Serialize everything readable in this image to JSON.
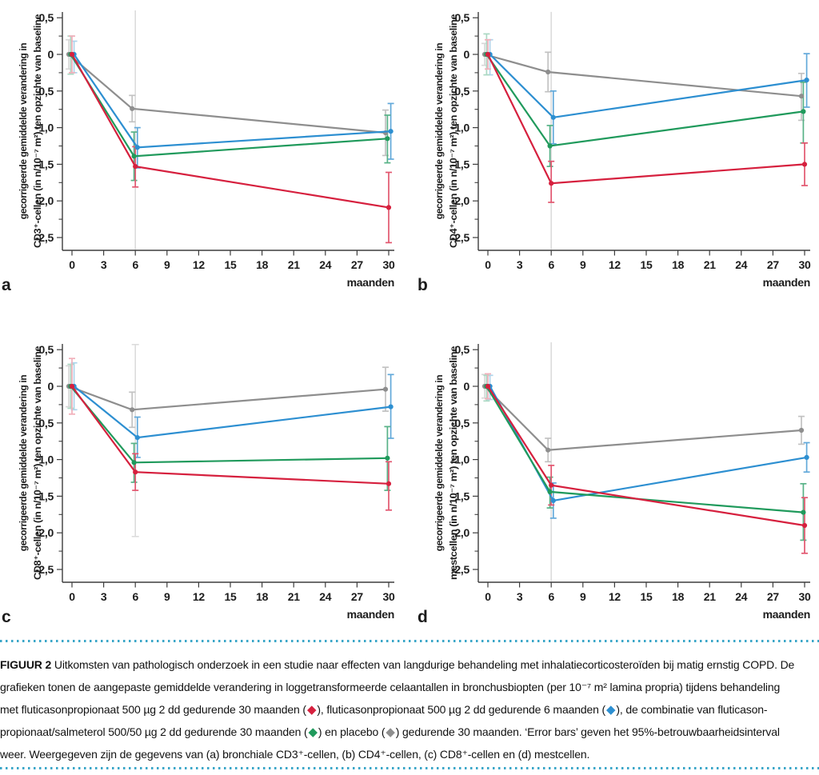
{
  "figure": {
    "caption_label": "FIGUUR 2",
    "caption_lines": [
      {
        "segments": [
          {
            "b": "FIGUUR 2"
          },
          {
            "t": "  Uitkomsten van pathologisch onderzoek in een studie naar effecten van langdurige behandeling met inhalatiecorticosteroïden bij matig ernstig COPD. De"
          }
        ]
      },
      {
        "segments": [
          {
            "t": "grafieken tonen de aangepaste gemiddelde verandering in loggetransformeerde celaantallen in bronchusbiopten (per 10⁻⁷ m² lamina propria) tijdens behandeling"
          }
        ]
      },
      {
        "segments": [
          {
            "t": "met fluticasonpropionaat 500 µg 2 dd gedurende 30 maanden ("
          },
          {
            "d": "red"
          },
          {
            "t": "), fluticasonpropionaat 500 µg 2 dd gedurende 6 maanden ("
          },
          {
            "d": "blue"
          },
          {
            "t": "), de combinatie van fluticason-"
          }
        ]
      },
      {
        "segments": [
          {
            "t": "propionaat/salmeterol 500/50 µg 2 dd gedurende 30 maanden ("
          },
          {
            "d": "green"
          },
          {
            "t": ") en placebo ("
          },
          {
            "d": "grey"
          },
          {
            "t": ") gedurende 30 maanden. ‘Error bars’ geven het 95%-betrouwbaarheidsinterval"
          }
        ]
      },
      {
        "segments": [
          {
            "t": "weer. Weergegeven zijn de gegevens van (a) bronchiale CD3⁺-cellen, (b) CD4⁺-cellen, (c) CD8⁺-cellen en (d) mestcellen."
          }
        ]
      }
    ],
    "separator_color": "#3aa6c8"
  },
  "legend": {
    "red": {
      "name": "fluticasonpropionaat 500 µg 2 dd gedurende 30 maanden",
      "line": "#d6203e",
      "ci": "#e2566f",
      "ci_light": "#f1afba"
    },
    "blue": {
      "name": "fluticasonpropionaat 500 µg 2 dd gedurende 6 maanden",
      "line": "#2d8fd1",
      "ci": "#62a9da",
      "ci_light": "#aed4ec"
    },
    "green": {
      "name": "fluticasonpropionaat/salmeterol 500/50 µg 2 dd gedurende 30 maanden",
      "line": "#209a5c",
      "ci": "#57b287",
      "ci_light": "#abd8c3"
    },
    "grey": {
      "name": "placebo gedurende 30 maanden",
      "line": "#8e8e8e",
      "ci": "#c2c2c2",
      "ci_light": "#d8d8d8"
    }
  },
  "chart_data": [
    {
      "type": "line",
      "panel_label": "a",
      "xlabel": "maanden",
      "ylabel_lines": [
        "gecorrigeerde gemiddelde verandering in",
        "CD3⁺-cellen (in n/10⁻⁷ m²) ten opzichte van baseline"
      ],
      "x_ticks": [
        0,
        3,
        6,
        9,
        12,
        15,
        18,
        21,
        24,
        27,
        30
      ],
      "y_ticks": [
        {
          "v": 0.5,
          "label": "0,5"
        },
        {
          "v": 0,
          "label": "0"
        },
        {
          "v": -0.5,
          "label": "-0,5"
        },
        {
          "v": -1,
          "label": "-1,0"
        },
        {
          "v": -1.5,
          "label": "-1,5"
        },
        {
          "v": -2,
          "label": "-2,0"
        },
        {
          "v": -2.5,
          "label": "-2,5"
        }
      ],
      "ylim": [
        -2.7,
        0.6
      ],
      "xlim": [
        0,
        30
      ],
      "guide": {
        "x": 6,
        "hi": 0.6,
        "lo": -2.66,
        "caps": false
      },
      "series": [
        {
          "key": "grey",
          "points": [
            {
              "x": 0,
              "y": 0,
              "hi": 0.2,
              "lo": -0.2
            },
            {
              "x": 6,
              "y": -0.74,
              "hi": -0.56,
              "lo": -0.92
            },
            {
              "x": 30,
              "y": -1.07,
              "hi": -0.76,
              "lo": -1.38
            }
          ]
        },
        {
          "key": "blue",
          "points": [
            {
              "x": 0,
              "y": 0,
              "hi": 0.18,
              "lo": -0.25
            },
            {
              "x": 6,
              "y": -1.27,
              "hi": -1.0,
              "lo": -1.55
            },
            {
              "x": 30,
              "y": -1.05,
              "hi": -0.67,
              "lo": -1.43
            }
          ]
        },
        {
          "key": "green",
          "points": [
            {
              "x": 0,
              "y": 0,
              "hi": 0.25,
              "lo": -0.27
            },
            {
              "x": 6,
              "y": -1.39,
              "hi": -1.06,
              "lo": -1.72
            },
            {
              "x": 30,
              "y": -1.15,
              "hi": -0.83,
              "lo": -1.48
            }
          ]
        },
        {
          "key": "red",
          "points": [
            {
              "x": 0,
              "y": 0,
              "hi": 0.25,
              "lo": -0.25
            },
            {
              "x": 6,
              "y": -1.53,
              "hi": -1.26,
              "lo": -1.81
            },
            {
              "x": 30,
              "y": -2.09,
              "hi": -1.61,
              "lo": -2.57
            }
          ]
        }
      ]
    },
    {
      "type": "line",
      "panel_label": "b",
      "xlabel": "maanden",
      "ylabel_lines": [
        "gecorrigeerde gemiddelde verandering in",
        "CD4⁺-cellen (in n/10⁻⁷ m²) ten opzichte van baseline"
      ],
      "x_ticks": [
        0,
        3,
        6,
        9,
        12,
        15,
        18,
        21,
        24,
        27,
        30
      ],
      "y_ticks": [
        {
          "v": 0.5,
          "label": "0,5"
        },
        {
          "v": 0,
          "label": "0"
        },
        {
          "v": -0.5,
          "label": "-0,5"
        },
        {
          "v": -1,
          "label": "-1,0"
        },
        {
          "v": -1.5,
          "label": "-1,5"
        },
        {
          "v": -2,
          "label": "-2,0"
        },
        {
          "v": -2.5,
          "label": "-2,5"
        }
      ],
      "ylim": [
        -2.7,
        0.6
      ],
      "xlim": [
        0,
        30
      ],
      "guide": {
        "x": 6,
        "hi": 0.58,
        "lo": -2.66,
        "caps": false
      },
      "series": [
        {
          "key": "grey",
          "points": [
            {
              "x": 0,
              "y": 0,
              "hi": 0.15,
              "lo": -0.15
            },
            {
              "x": 6,
              "y": -0.24,
              "hi": 0.03,
              "lo": -0.51
            },
            {
              "x": 30,
              "y": -0.57,
              "hi": -0.26,
              "lo": -0.9
            }
          ]
        },
        {
          "key": "blue",
          "points": [
            {
              "x": 0,
              "y": 0,
              "hi": 0.2,
              "lo": -0.28
            },
            {
              "x": 6,
              "y": -0.86,
              "hi": -0.5,
              "lo": -1.22
            },
            {
              "x": 30,
              "y": -0.35,
              "hi": 0.01,
              "lo": -0.72
            }
          ]
        },
        {
          "key": "green",
          "points": [
            {
              "x": 0,
              "y": 0,
              "hi": 0.28,
              "lo": -0.28
            },
            {
              "x": 6,
              "y": -1.25,
              "hi": -0.97,
              "lo": -1.53
            },
            {
              "x": 30,
              "y": -0.78,
              "hi": -0.38,
              "lo": -1.21
            }
          ]
        },
        {
          "key": "red",
          "points": [
            {
              "x": 0,
              "y": 0,
              "hi": 0.2,
              "lo": -0.2
            },
            {
              "x": 6,
              "y": -1.76,
              "hi": -1.46,
              "lo": -2.02
            },
            {
              "x": 30,
              "y": -1.5,
              "hi": -1.21,
              "lo": -1.79
            }
          ]
        }
      ]
    },
    {
      "type": "line",
      "panel_label": "c",
      "xlabel": "maanden",
      "ylabel_lines": [
        "gecorrigeerde gemiddelde verandering in",
        "CD8⁺-cellen (in n/10⁻⁷ m²) ten opzichte van baseline"
      ],
      "x_ticks": [
        0,
        3,
        6,
        9,
        12,
        15,
        18,
        21,
        24,
        27,
        30
      ],
      "y_ticks": [
        {
          "v": 0.5,
          "label": "0,5"
        },
        {
          "v": 0,
          "label": "0"
        },
        {
          "v": -0.5,
          "label": "-0,5"
        },
        {
          "v": -1,
          "label": "-1,0"
        },
        {
          "v": -1.5,
          "label": "-1,5"
        },
        {
          "v": -2,
          "label": "-2,0"
        },
        {
          "v": -2.5,
          "label": "-2,5"
        }
      ],
      "ylim": [
        -2.7,
        0.6
      ],
      "xlim": [
        0,
        30
      ],
      "guide": {
        "x": 6,
        "hi": 0.57,
        "lo": -2.05,
        "caps": true
      },
      "series": [
        {
          "key": "grey",
          "points": [
            {
              "x": 0,
              "y": 0,
              "hi": 0.28,
              "lo": -0.28
            },
            {
              "x": 6,
              "y": -0.32,
              "hi": -0.08,
              "lo": -0.56
            },
            {
              "x": 30,
              "y": -0.04,
              "hi": 0.26,
              "lo": -0.34
            }
          ]
        },
        {
          "key": "blue",
          "points": [
            {
              "x": 0,
              "y": 0,
              "hi": 0.32,
              "lo": -0.32
            },
            {
              "x": 6,
              "y": -0.7,
              "hi": -0.42,
              "lo": -0.97
            },
            {
              "x": 30,
              "y": -0.28,
              "hi": 0.16,
              "lo": -0.71
            }
          ]
        },
        {
          "key": "green",
          "points": [
            {
              "x": 0,
              "y": 0,
              "hi": 0.3,
              "lo": -0.3
            },
            {
              "x": 6,
              "y": -1.04,
              "hi": -0.78,
              "lo": -1.31
            },
            {
              "x": 30,
              "y": -0.98,
              "hi": -0.55,
              "lo": -1.42
            }
          ]
        },
        {
          "key": "red",
          "points": [
            {
              "x": 0,
              "y": 0,
              "hi": 0.38,
              "lo": -0.38
            },
            {
              "x": 6,
              "y": -1.17,
              "hi": -0.92,
              "lo": -1.42
            },
            {
              "x": 30,
              "y": -1.33,
              "hi": -1.03,
              "lo": -1.69
            }
          ]
        }
      ]
    },
    {
      "type": "line",
      "panel_label": "d",
      "xlabel": "maanden",
      "ylabel_lines": [
        "gecorrigeerde gemiddelde verandering in",
        "mestcellen (in n/10⁻⁷ m²) ten opzichte van baseline"
      ],
      "x_ticks": [
        0,
        3,
        6,
        9,
        12,
        15,
        18,
        21,
        24,
        27,
        30
      ],
      "y_ticks": [
        {
          "v": 0.5,
          "label": "0,5"
        },
        {
          "v": 0,
          "label": "0"
        },
        {
          "v": -0.5,
          "label": "-0,5"
        },
        {
          "v": -1,
          "label": "-1,0"
        },
        {
          "v": -1.5,
          "label": "-1,5"
        },
        {
          "v": -2,
          "label": "-2,0"
        },
        {
          "v": -2.5,
          "label": "-2,5"
        }
      ],
      "ylim": [
        -2.7,
        0.6
      ],
      "xlim": [
        0,
        30
      ],
      "guide": {
        "x": 6,
        "hi": 0.6,
        "lo": -2.66,
        "caps": false
      },
      "series": [
        {
          "key": "grey",
          "points": [
            {
              "x": 0,
              "y": 0,
              "hi": 0.16,
              "lo": -0.16
            },
            {
              "x": 6,
              "y": -0.87,
              "hi": -0.71,
              "lo": -1.03
            },
            {
              "x": 30,
              "y": -0.6,
              "hi": -0.41,
              "lo": -0.79
            }
          ]
        },
        {
          "key": "blue",
          "points": [
            {
              "x": 0,
              "y": 0,
              "hi": 0.15,
              "lo": -0.18
            },
            {
              "x": 6,
              "y": -1.56,
              "hi": -1.32,
              "lo": -1.8
            },
            {
              "x": 30,
              "y": -0.97,
              "hi": -0.77,
              "lo": -1.17
            }
          ]
        },
        {
          "key": "green",
          "points": [
            {
              "x": 0,
              "y": 0,
              "hi": 0.15,
              "lo": -0.2
            },
            {
              "x": 6,
              "y": -1.44,
              "hi": -1.24,
              "lo": -1.66
            },
            {
              "x": 30,
              "y": -1.72,
              "hi": -1.33,
              "lo": -2.1
            }
          ]
        },
        {
          "key": "red",
          "points": [
            {
              "x": 0,
              "y": 0,
              "hi": 0.17,
              "lo": -0.17
            },
            {
              "x": 6,
              "y": -1.35,
              "hi": -1.08,
              "lo": -1.62
            },
            {
              "x": 30,
              "y": -1.9,
              "hi": -1.52,
              "lo": -2.28
            }
          ]
        }
      ]
    }
  ],
  "jitter_months": {
    "grey": -0.3,
    "green": -0.12,
    "red": 0,
    "blue": 0.2
  }
}
